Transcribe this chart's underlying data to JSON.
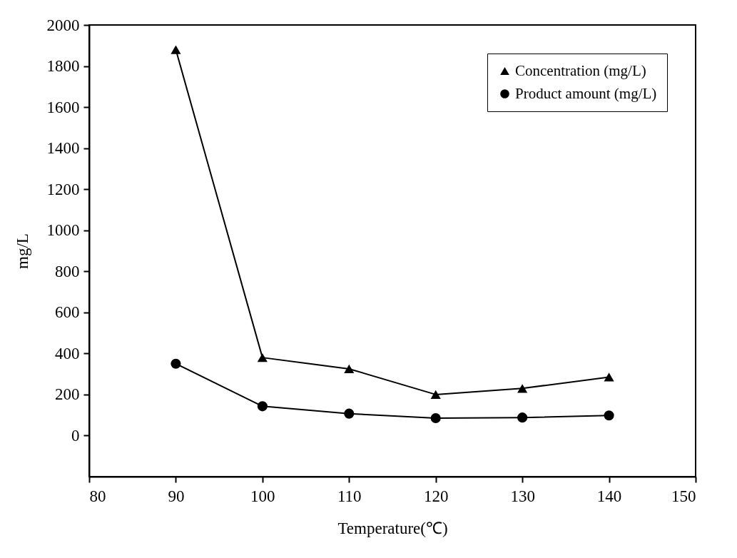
{
  "chart_data": {
    "type": "line",
    "xlabel": "Temperature(℃)",
    "ylabel": "mg/L",
    "x": [
      90,
      100,
      110,
      120,
      130,
      140
    ],
    "series": [
      {
        "name": "Concentration (mg/L)",
        "color": "#000000",
        "marker": "triangle",
        "values": [
          1880,
          380,
          325,
          200,
          230,
          285
        ]
      },
      {
        "name": "Product amount (mg/L)",
        "color": "#000000",
        "marker": "circle",
        "values": [
          350,
          143,
          107,
          85,
          88,
          98
        ]
      }
    ],
    "xlim": [
      80,
      150
    ],
    "xticks": [
      80,
      90,
      100,
      110,
      120,
      130,
      140,
      150
    ],
    "ylim": [
      -200,
      2000
    ],
    "yticks": [
      0,
      200,
      400,
      600,
      800,
      1000,
      1200,
      1400,
      1600,
      1800,
      2000
    ],
    "grid": false,
    "legend": "top right"
  }
}
